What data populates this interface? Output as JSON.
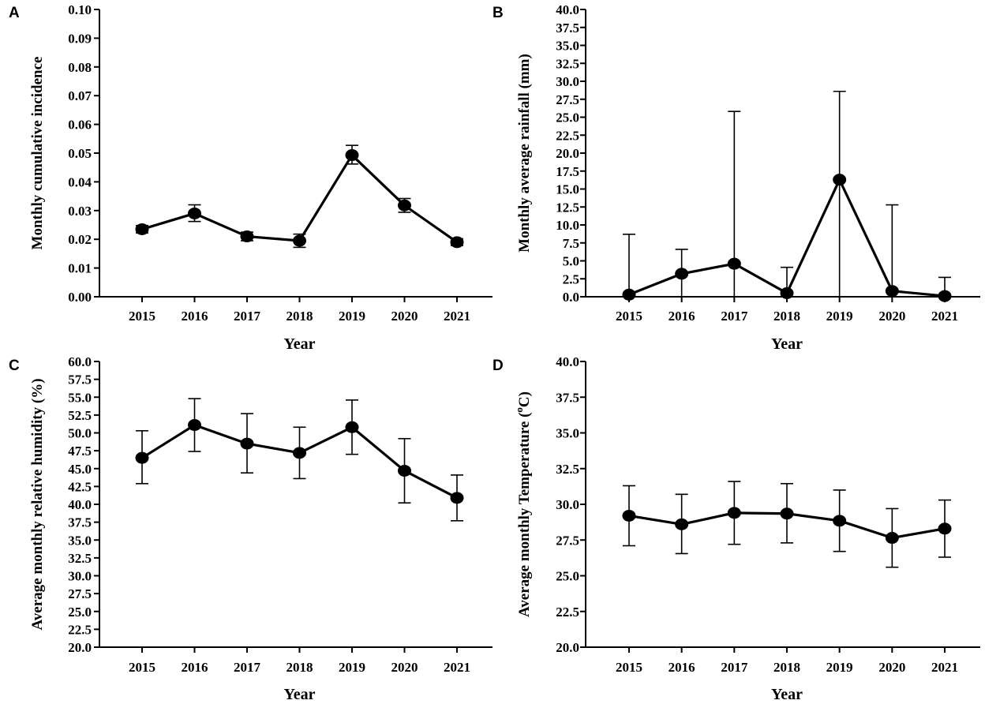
{
  "chart_data": [
    {
      "panel": "A",
      "type": "line",
      "xlabel": "Year",
      "ylabel": "Monthly cumulative incidence",
      "categories": [
        "2015",
        "2016",
        "2017",
        "2018",
        "2019",
        "2020",
        "2021"
      ],
      "values": [
        0.0235,
        0.029,
        0.021,
        0.0195,
        0.0493,
        0.0318,
        0.019
      ],
      "err_low": [
        0.0222,
        0.0262,
        0.0195,
        0.0172,
        0.0462,
        0.0294,
        0.0178
      ],
      "err_high": [
        0.0248,
        0.032,
        0.0225,
        0.0218,
        0.0527,
        0.0342,
        0.0202
      ],
      "ylim": [
        0,
        0.1
      ],
      "yticks": [
        "0.00",
        "0.01",
        "0.02",
        "0.03",
        "0.04",
        "0.05",
        "0.06",
        "0.07",
        "0.08",
        "0.09",
        "0.10"
      ]
    },
    {
      "panel": "B",
      "type": "line",
      "xlabel": "Year",
      "ylabel": "Monthly average rainfall (mm)",
      "categories": [
        "2015",
        "2016",
        "2017",
        "2018",
        "2019",
        "2020",
        "2021"
      ],
      "values": [
        0.3,
        3.2,
        4.6,
        0.5,
        16.3,
        0.8,
        0.1
      ],
      "err_low": [
        0,
        0,
        0,
        0,
        0,
        0,
        0
      ],
      "err_high": [
        8.7,
        6.6,
        25.8,
        4.1,
        28.6,
        12.8,
        2.7
      ],
      "ylim": [
        0,
        40
      ],
      "yticks": [
        "0.0",
        "2.5",
        "5.0",
        "7.5",
        "10.0",
        "12.5",
        "15.0",
        "17.5",
        "20.0",
        "22.5",
        "25.0",
        "27.5",
        "30.0",
        "32.5",
        "35.0",
        "37.5",
        "40.0"
      ]
    },
    {
      "panel": "C",
      "type": "line",
      "xlabel": "Year",
      "ylabel": "Average monthly relative humidity (%)",
      "categories": [
        "2015",
        "2016",
        "2017",
        "2018",
        "2019",
        "2020",
        "2021"
      ],
      "values": [
        46.5,
        51.1,
        48.5,
        47.2,
        50.8,
        44.7,
        40.9
      ],
      "err_low": [
        42.9,
        47.4,
        44.4,
        43.6,
        47.0,
        40.2,
        37.7
      ],
      "err_high": [
        50.3,
        54.8,
        52.7,
        50.8,
        54.6,
        49.2,
        44.1
      ],
      "ylim": [
        20,
        60
      ],
      "yticks": [
        "20.0",
        "22.5",
        "25.0",
        "27.5",
        "30.0",
        "32.5",
        "35.0",
        "37.5",
        "40.0",
        "42.5",
        "45.0",
        "47.5",
        "50.0",
        "52.5",
        "55.0",
        "57.5",
        "60.0"
      ]
    },
    {
      "panel": "D",
      "type": "line",
      "xlabel": "Year",
      "ylabel": "Average monthly Temperature (",
      "ylabel_sup": "o",
      "ylabel_unit": "C)",
      "categories": [
        "2015",
        "2016",
        "2017",
        "2018",
        "2019",
        "2020",
        "2021"
      ],
      "values": [
        29.2,
        28.6,
        29.4,
        29.35,
        28.85,
        27.65,
        28.3
      ],
      "err_low": [
        27.1,
        26.55,
        27.2,
        27.3,
        26.7,
        25.6,
        26.3
      ],
      "err_high": [
        31.3,
        30.7,
        31.6,
        31.45,
        31.0,
        29.7,
        30.3
      ],
      "ylim": [
        20,
        40
      ],
      "yticks": [
        "20.0",
        "22.5",
        "25.0",
        "27.5",
        "30.0",
        "32.5",
        "35.0",
        "37.5",
        "40.0"
      ]
    }
  ]
}
